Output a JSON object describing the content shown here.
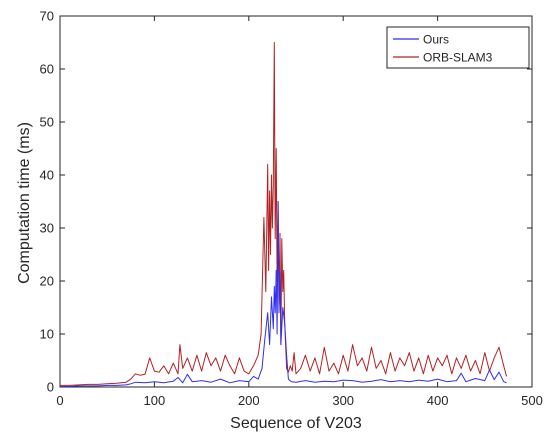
{
  "chart_data": {
    "type": "line",
    "xlabel": "Sequence of V203",
    "ylabel": "Computation time (ms)",
    "xlim": [
      0,
      500
    ],
    "ylim": [
      0,
      70
    ],
    "xticks": [
      0,
      100,
      200,
      300,
      400,
      500
    ],
    "yticks": [
      0,
      10,
      20,
      30,
      40,
      50,
      60,
      70
    ],
    "grid": false,
    "legend_position": "top-right",
    "series": [
      {
        "name": "Ours",
        "color": "#2f2ff0",
        "x": [
          0,
          10,
          20,
          30,
          40,
          50,
          60,
          70,
          75,
          80,
          90,
          100,
          110,
          120,
          125,
          130,
          135,
          140,
          150,
          160,
          170,
          180,
          190,
          200,
          205,
          210,
          214,
          217,
          220,
          222,
          224,
          226,
          227,
          228,
          229,
          230,
          231,
          232,
          233,
          234,
          236,
          238,
          240,
          242,
          245,
          250,
          260,
          270,
          280,
          290,
          300,
          310,
          320,
          330,
          340,
          350,
          360,
          370,
          380,
          390,
          400,
          410,
          420,
          425,
          430,
          440,
          450,
          455,
          460,
          465,
          470,
          473
        ],
        "y": [
          0.1,
          0.1,
          0.2,
          0.2,
          0.2,
          0.3,
          0.3,
          0.4,
          0.6,
          0.9,
          0.8,
          1.0,
          0.8,
          1.1,
          1.8,
          0.8,
          2.4,
          1.0,
          1.2,
          0.9,
          1.5,
          0.8,
          1.2,
          1.0,
          2.0,
          1.5,
          3.5,
          9.0,
          14.0,
          8.0,
          17.0,
          11.0,
          19.0,
          14.0,
          22.0,
          10.0,
          35.0,
          14.0,
          22.0,
          8.0,
          15.0,
          12.0,
          6.0,
          1.5,
          1.0,
          0.9,
          1.2,
          0.9,
          1.1,
          1.0,
          1.3,
          1.2,
          0.9,
          1.1,
          1.4,
          1.0,
          1.2,
          1.0,
          1.3,
          1.1,
          1.5,
          1.0,
          1.2,
          2.6,
          1.0,
          1.6,
          1.2,
          3.2,
          1.4,
          2.8,
          1.0,
          0.8
        ]
      },
      {
        "name": "ORB-SLAM3",
        "color": "#b22222",
        "x": [
          0,
          10,
          20,
          30,
          40,
          50,
          60,
          70,
          75,
          80,
          85,
          90,
          95,
          100,
          105,
          110,
          115,
          120,
          125,
          127,
          130,
          135,
          140,
          145,
          150,
          155,
          160,
          165,
          170,
          175,
          180,
          185,
          190,
          195,
          200,
          205,
          210,
          213,
          216,
          218,
          220,
          221,
          222,
          223,
          224,
          225,
          226,
          227,
          228,
          229,
          230,
          231,
          232,
          233,
          234,
          235,
          236,
          237,
          238,
          240,
          242,
          244,
          246,
          248,
          250,
          255,
          260,
          265,
          270,
          275,
          280,
          285,
          290,
          295,
          300,
          305,
          310,
          315,
          320,
          325,
          330,
          335,
          340,
          345,
          350,
          355,
          360,
          365,
          370,
          375,
          380,
          385,
          390,
          395,
          400,
          405,
          410,
          415,
          420,
          425,
          430,
          435,
          440,
          445,
          450,
          455,
          460,
          465,
          470,
          473
        ],
        "y": [
          0.3,
          0.3,
          0.4,
          0.5,
          0.5,
          0.6,
          0.7,
          0.9,
          1.5,
          2.5,
          2.2,
          2.4,
          5.5,
          3.0,
          2.8,
          4.0,
          2.5,
          4.5,
          2.5,
          8.0,
          3.5,
          5.5,
          3.0,
          6.0,
          3.0,
          6.5,
          4.0,
          5.5,
          3.0,
          6.0,
          4.0,
          2.5,
          5.5,
          3.0,
          2.5,
          4.0,
          6.0,
          10.0,
          32.0,
          18.0,
          42.0,
          22.0,
          37.0,
          25.0,
          40.0,
          30.0,
          38.0,
          65.0,
          28.0,
          45.0,
          20.0,
          35.0,
          15.0,
          29.0,
          8.0,
          28.0,
          18.0,
          22.0,
          12.0,
          3.5,
          2.8,
          4.0,
          3.0,
          6.5,
          2.5,
          3.5,
          6.0,
          3.0,
          5.5,
          2.5,
          7.5,
          3.0,
          4.5,
          2.5,
          6.0,
          3.0,
          8.0,
          4.0,
          5.5,
          3.0,
          7.5,
          3.5,
          5.0,
          2.5,
          6.5,
          3.0,
          5.5,
          4.0,
          6.5,
          3.0,
          5.5,
          2.5,
          6.0,
          3.0,
          5.5,
          4.0,
          6.0,
          2.5,
          5.5,
          3.5,
          6.0,
          3.0,
          5.0,
          2.5,
          6.5,
          3.0,
          5.5,
          7.5,
          4.0,
          2.0
        ]
      }
    ]
  }
}
